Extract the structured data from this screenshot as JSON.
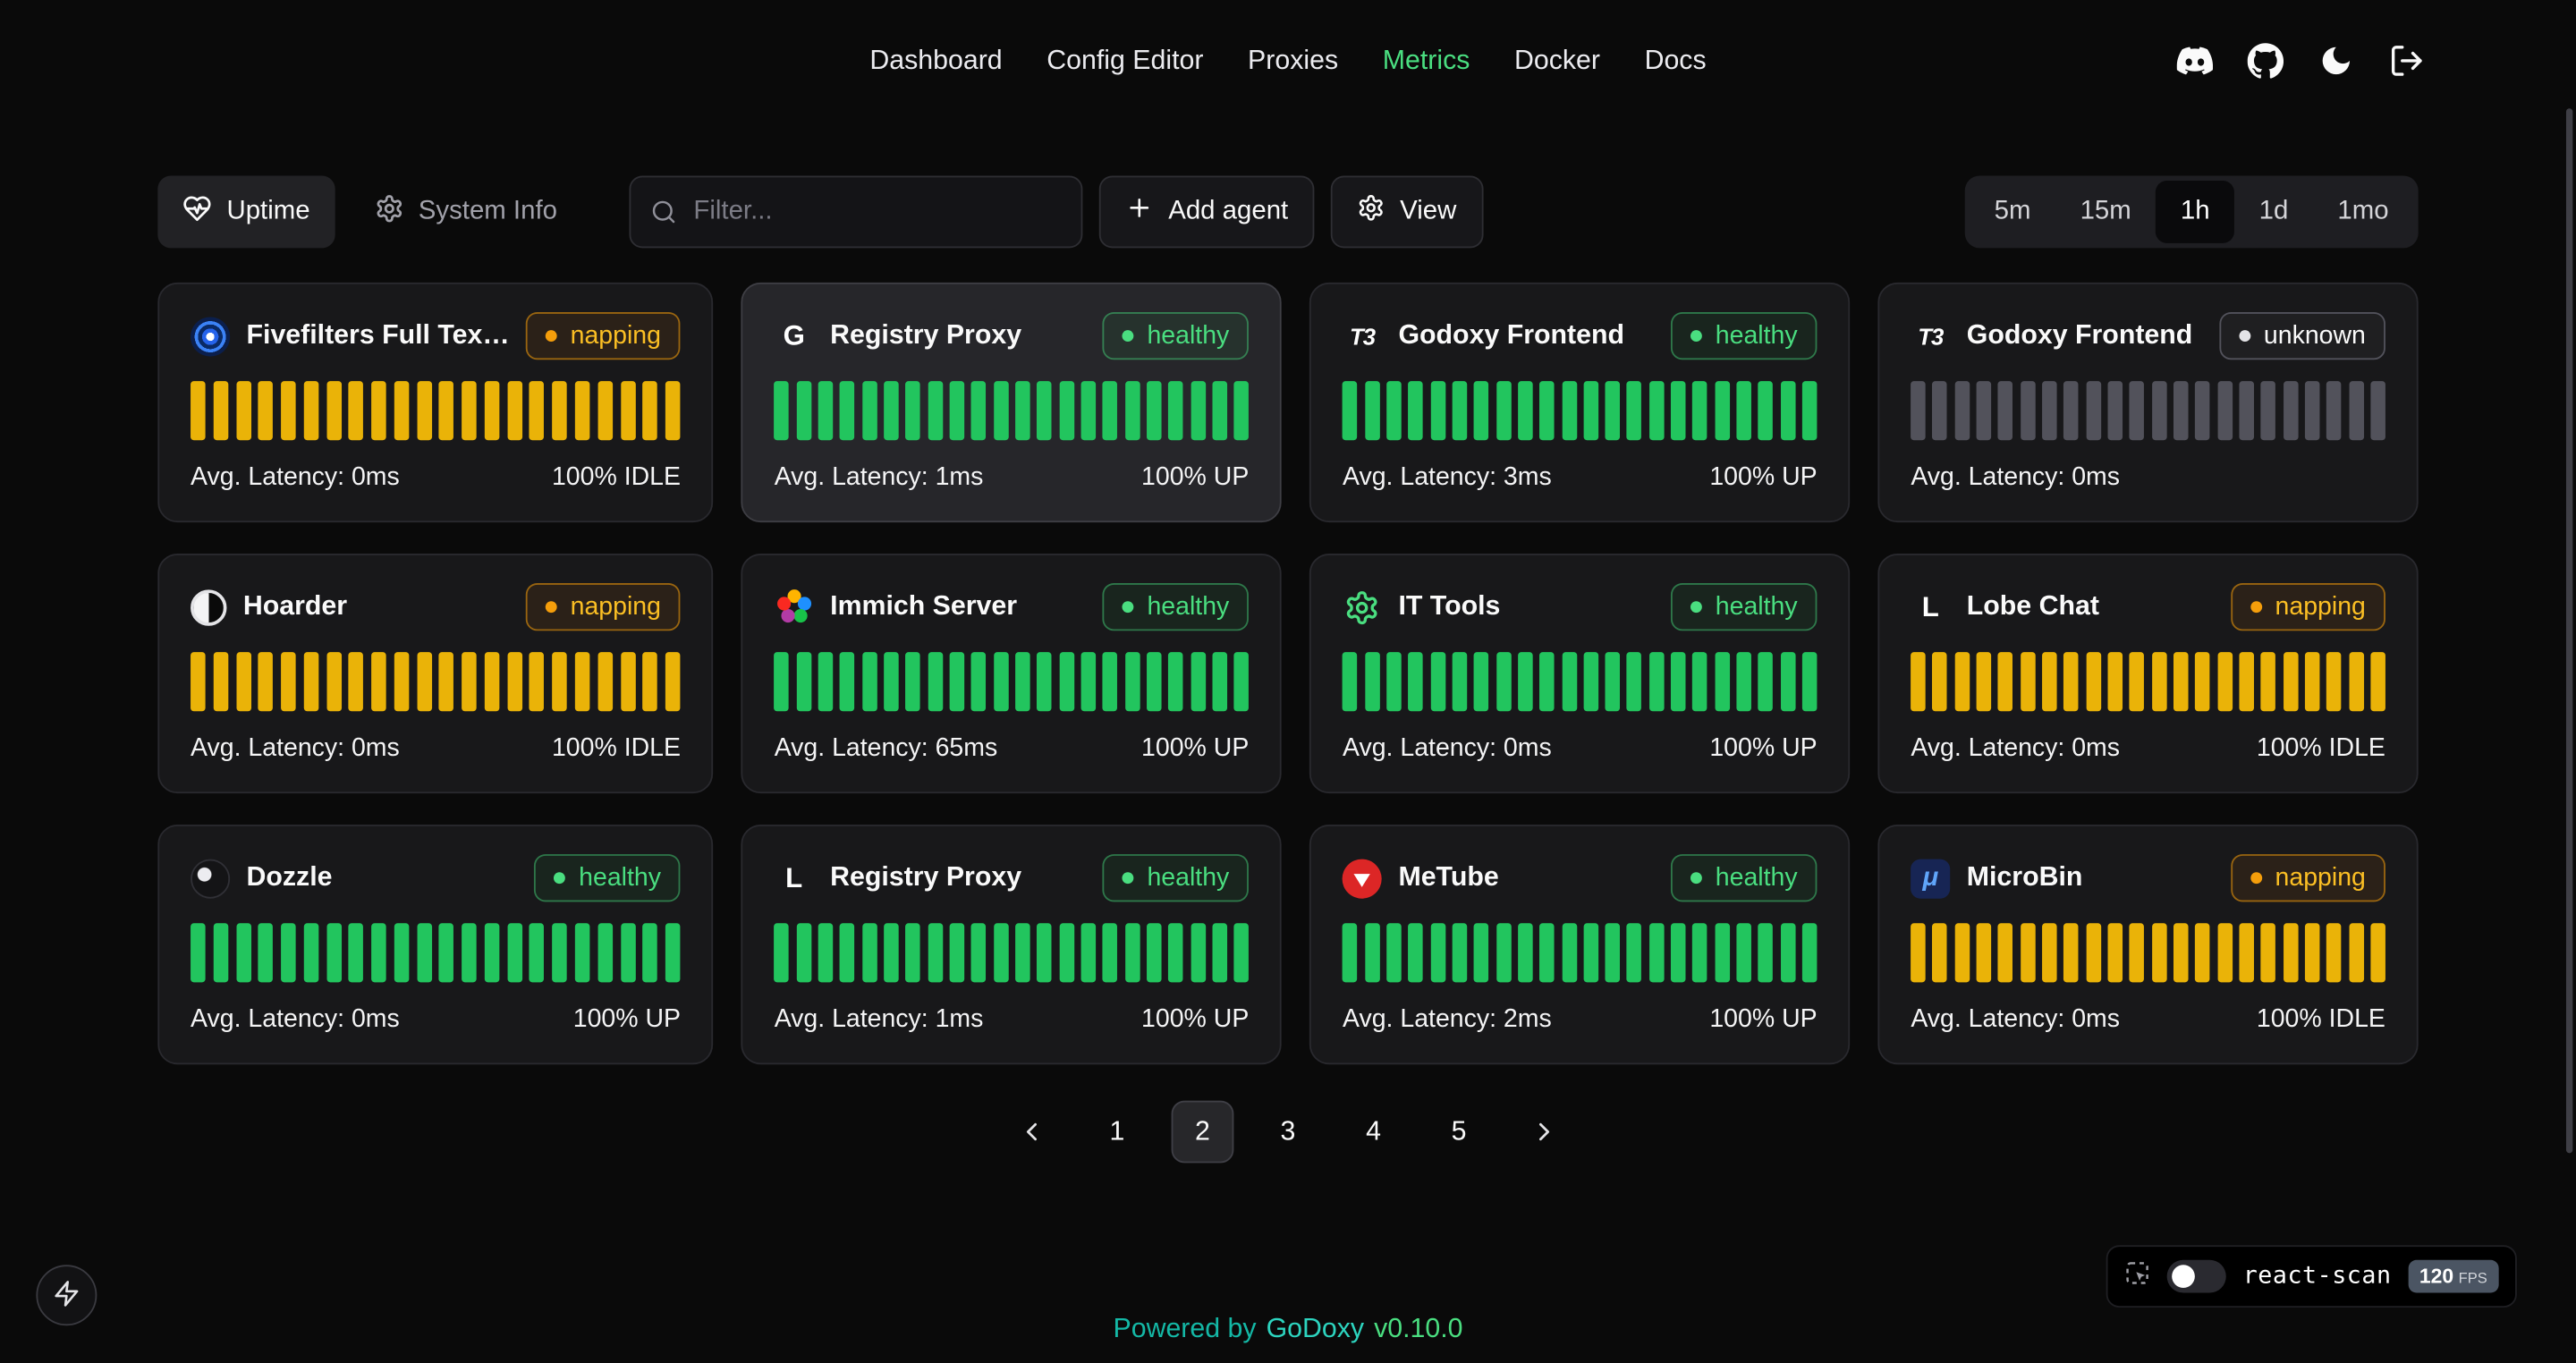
{
  "nav": {
    "items": [
      {
        "label": "Dashboard",
        "active": false
      },
      {
        "label": "Config Editor",
        "active": false
      },
      {
        "label": "Proxies",
        "active": false
      },
      {
        "label": "Metrics",
        "active": true
      },
      {
        "label": "Docker",
        "active": false
      },
      {
        "label": "Docs",
        "active": false
      }
    ]
  },
  "header_icons": [
    {
      "name": "discord-icon"
    },
    {
      "name": "github-icon"
    },
    {
      "name": "moon-icon"
    },
    {
      "name": "logout-icon"
    }
  ],
  "toolbar": {
    "uptime_label": "Uptime",
    "system_info_label": "System Info",
    "filter_placeholder": "Filter...",
    "add_agent_label": "Add agent",
    "view_label": "View",
    "ranges": [
      {
        "label": "5m",
        "active": false
      },
      {
        "label": "15m",
        "active": false
      },
      {
        "label": "1h",
        "active": true
      },
      {
        "label": "1d",
        "active": false
      },
      {
        "label": "1mo",
        "active": false
      }
    ]
  },
  "cards": [
    {
      "title": "Fivefilters Full Tex…",
      "icon": {
        "type": "fivefilters",
        "name": "fivefilters-icon",
        "text": ""
      },
      "status": "napping",
      "status_label": "napping",
      "latency": "Avg. Latency: 0ms",
      "uptime": "100% IDLE",
      "bars": {
        "count": 22,
        "state": "idle"
      },
      "highlighted": false
    },
    {
      "title": "Registry Proxy",
      "icon": {
        "type": "letter",
        "name": "registry-proxy-icon",
        "text": "G"
      },
      "status": "healthy",
      "status_label": "healthy",
      "latency": "Avg. Latency: 1ms",
      "uptime": "100% UP",
      "bars": {
        "count": 22,
        "state": "up"
      },
      "highlighted": true
    },
    {
      "title": "Godoxy Frontend",
      "icon": {
        "type": "letter-t3",
        "name": "godoxy-frontend-icon",
        "text": "T3"
      },
      "status": "healthy",
      "status_label": "healthy",
      "latency": "Avg. Latency: 3ms",
      "uptime": "100% UP",
      "bars": {
        "count": 22,
        "state": "up"
      },
      "highlighted": false
    },
    {
      "title": "Godoxy Frontend",
      "icon": {
        "type": "letter-t3",
        "name": "godoxy-frontend-icon",
        "text": "T3"
      },
      "status": "unknown",
      "status_label": "unknown",
      "latency": "Avg. Latency: 0ms",
      "uptime": "",
      "bars": {
        "count": 22,
        "state": "unknown"
      },
      "highlighted": false
    },
    {
      "title": "Hoarder",
      "icon": {
        "type": "hoarder",
        "name": "hoarder-icon",
        "text": ""
      },
      "status": "napping",
      "status_label": "napping",
      "latency": "Avg. Latency: 0ms",
      "uptime": "100% IDLE",
      "bars": {
        "count": 22,
        "state": "idle"
      },
      "highlighted": false
    },
    {
      "title": "Immich Server",
      "icon": {
        "type": "immich",
        "name": "immich-icon",
        "text": ""
      },
      "status": "healthy",
      "status_label": "healthy",
      "latency": "Avg. Latency: 65ms",
      "uptime": "100% UP",
      "bars": {
        "count": 22,
        "state": "up"
      },
      "highlighted": false
    },
    {
      "title": "IT Tools",
      "icon": {
        "type": "ittools",
        "name": "it-tools-icon",
        "text": ""
      },
      "status": "healthy",
      "status_label": "healthy",
      "latency": "Avg. Latency: 0ms",
      "uptime": "100% UP",
      "bars": {
        "count": 22,
        "state": "up"
      },
      "highlighted": false
    },
    {
      "title": "Lobe Chat",
      "icon": {
        "type": "letter",
        "name": "lobe-chat-icon",
        "text": "L"
      },
      "status": "napping",
      "status_label": "napping",
      "latency": "Avg. Latency: 0ms",
      "uptime": "100% IDLE",
      "bars": {
        "count": 22,
        "state": "idle"
      },
      "highlighted": false
    },
    {
      "title": "Dozzle",
      "icon": {
        "type": "dozzle",
        "name": "dozzle-icon",
        "text": ""
      },
      "status": "healthy",
      "status_label": "healthy",
      "latency": "Avg. Latency: 0ms",
      "uptime": "100% UP",
      "bars": {
        "count": 22,
        "state": "up"
      },
      "highlighted": false
    },
    {
      "title": "Registry Proxy",
      "icon": {
        "type": "letter",
        "name": "registry-proxy-icon",
        "text": "L"
      },
      "status": "healthy",
      "status_label": "healthy",
      "latency": "Avg. Latency: 1ms",
      "uptime": "100% UP",
      "bars": {
        "count": 22,
        "state": "up"
      },
      "highlighted": false
    },
    {
      "title": "MeTube",
      "icon": {
        "type": "metube",
        "name": "metube-icon",
        "text": ""
      },
      "status": "healthy",
      "status_label": "healthy",
      "latency": "Avg. Latency: 2ms",
      "uptime": "100% UP",
      "bars": {
        "count": 22,
        "state": "up"
      },
      "highlighted": false
    },
    {
      "title": "MicroBin",
      "icon": {
        "type": "microbin",
        "name": "microbin-icon",
        "text": "μ"
      },
      "status": "napping",
      "status_label": "napping",
      "latency": "Avg. Latency: 0ms",
      "uptime": "100% IDLE",
      "bars": {
        "count": 22,
        "state": "idle"
      },
      "highlighted": false
    }
  ],
  "pagination": {
    "pages": [
      "1",
      "2",
      "3",
      "4",
      "5"
    ],
    "active": "2"
  },
  "footer": {
    "powered_by": "Powered by",
    "brand": "GoDoxy",
    "version": "v0.10.0"
  },
  "react_scan": {
    "label": "react-scan",
    "fps_value": "120",
    "fps_unit": "FPS"
  },
  "status_colors": {
    "healthy": "#4ade80",
    "napping": "#fbbf24",
    "unknown": "#e4e4e7"
  },
  "bar_colors": {
    "up": "#22c55e",
    "idle": "#eab308",
    "unknown": "#52525b"
  },
  "accent": "#4ade80"
}
